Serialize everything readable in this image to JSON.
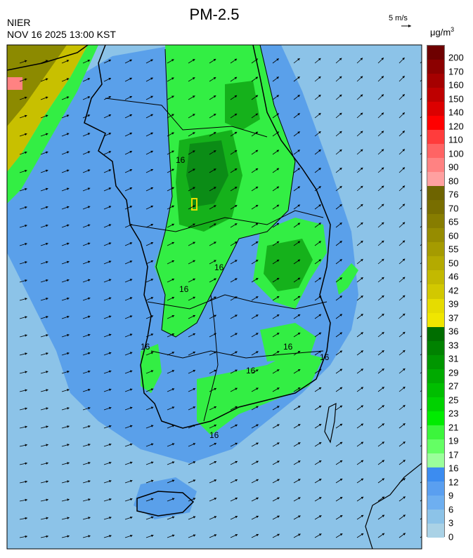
{
  "header": {
    "title": "PM-2.5",
    "agency": "NIER",
    "timestamp": "NOV 16 2025 13:00 KST",
    "wind_reference": "5 m/s",
    "unit_base": "μg/m",
    "unit_exp": "3"
  },
  "map": {
    "contour_labels": [
      "16",
      "16",
      "16",
      "16",
      "16",
      "16",
      "16",
      "16"
    ],
    "colors": {
      "sea": "#8cc3e8",
      "land_low": "#5aa0ea",
      "land_mid": "#33ee44",
      "land_high": "#15b11b",
      "land_peak": "#0b8c16",
      "plume_yellow": "#c8c000",
      "plume_olive": "#8c8a00"
    }
  },
  "legend": {
    "labels": [
      "200",
      "170",
      "160",
      "150",
      "140",
      "120",
      "110",
      "100",
      "90",
      "80",
      "76",
      "70",
      "65",
      "60",
      "55",
      "50",
      "46",
      "42",
      "39",
      "37",
      "36",
      "33",
      "31",
      "29",
      "27",
      "25",
      "23",
      "21",
      "19",
      "17",
      "16",
      "12",
      "9",
      "6",
      "3",
      "0"
    ],
    "colors": [
      "#6e0000",
      "#8c0000",
      "#a50000",
      "#be0000",
      "#dc0000",
      "#ff0000",
      "#ff3c3c",
      "#ff6464",
      "#ff8282",
      "#ffa0a0",
      "#6e6400",
      "#786e00",
      "#877d00",
      "#968c00",
      "#a59b00",
      "#b4aa00",
      "#c3b900",
      "#d2c800",
      "#e6dc00",
      "#f0e600",
      "#006e00",
      "#008200",
      "#009600",
      "#00aa00",
      "#00be00",
      "#00d200",
      "#00eb00",
      "#3cf53c",
      "#64ff64",
      "#9bff9b",
      "#3c8cf0",
      "#5a9ff0",
      "#6eaff0",
      "#8cc3e8",
      "#aad2e6"
    ]
  }
}
